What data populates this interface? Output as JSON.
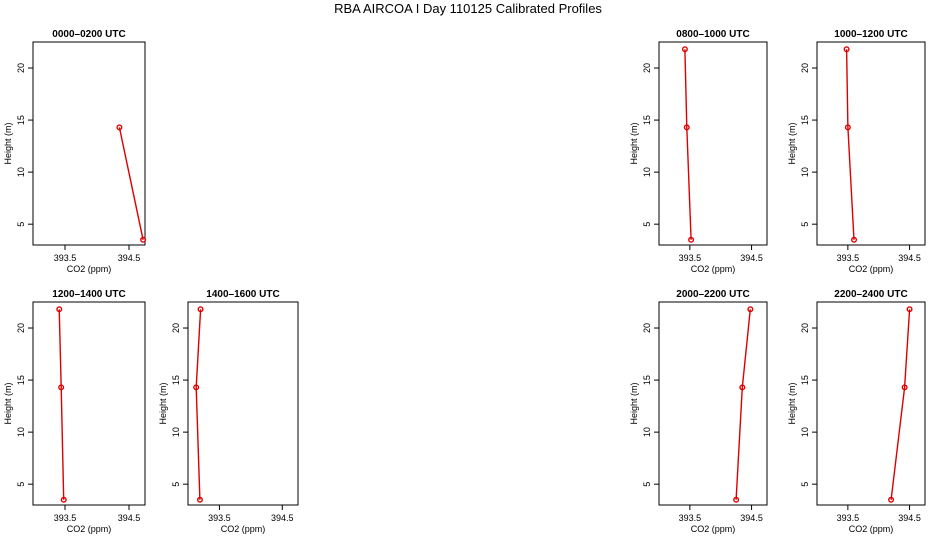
{
  "title": "RBA AIRCOA I  Day 110125  Calibrated Profiles",
  "chart_data": [
    {
      "type": "line",
      "title": "0000–0200 UTC",
      "xlabel": "CO2 (ppm)",
      "ylabel": "Height (m)",
      "xlim": [
        393.0,
        394.75
      ],
      "ylim": [
        3,
        22.5
      ],
      "xticks": [
        393.5,
        394.5
      ],
      "yticks": [
        5,
        10,
        15,
        20
      ],
      "points": [
        {
          "x": 394.35,
          "y": 14.3
        },
        {
          "x": 394.72,
          "y": 3.5
        }
      ],
      "color": "#dd0000"
    },
    {
      "type": "line",
      "title": "0800–1000 UTC",
      "xlabel": "CO2 (ppm)",
      "ylabel": "Height (m)",
      "xlim": [
        393.0,
        394.75
      ],
      "ylim": [
        3,
        22.5
      ],
      "xticks": [
        393.5,
        394.5
      ],
      "yticks": [
        5,
        10,
        15,
        20
      ],
      "points": [
        {
          "x": 393.42,
          "y": 21.8
        },
        {
          "x": 393.45,
          "y": 14.3
        },
        {
          "x": 393.52,
          "y": 3.5
        }
      ],
      "color": "#dd0000"
    },
    {
      "type": "line",
      "title": "1000–1200 UTC",
      "xlabel": "CO2 (ppm)",
      "ylabel": "Height (m)",
      "xlim": [
        393.0,
        394.75
      ],
      "ylim": [
        3,
        22.5
      ],
      "xticks": [
        393.5,
        394.5
      ],
      "yticks": [
        5,
        10,
        15,
        20
      ],
      "points": [
        {
          "x": 393.48,
          "y": 21.8
        },
        {
          "x": 393.5,
          "y": 14.3
        },
        {
          "x": 393.6,
          "y": 3.5
        }
      ],
      "color": "#dd0000"
    },
    {
      "type": "line",
      "title": "1200–1400 UTC",
      "xlabel": "CO2 (ppm)",
      "ylabel": "Height (m)",
      "xlim": [
        393.0,
        394.75
      ],
      "ylim": [
        3,
        22.5
      ],
      "xticks": [
        393.5,
        394.5
      ],
      "yticks": [
        5,
        10,
        15,
        20
      ],
      "points": [
        {
          "x": 393.41,
          "y": 21.8
        },
        {
          "x": 393.44,
          "y": 14.3
        },
        {
          "x": 393.48,
          "y": 3.5
        }
      ],
      "color": "#dd0000"
    },
    {
      "type": "line",
      "title": "1400–1600 UTC",
      "xlabel": "CO2 (ppm)",
      "ylabel": "Height (m)",
      "xlim": [
        393.0,
        394.75
      ],
      "ylim": [
        3,
        22.5
      ],
      "xticks": [
        393.5,
        394.5
      ],
      "yticks": [
        5,
        10,
        15,
        20
      ],
      "points": [
        {
          "x": 393.2,
          "y": 21.8
        },
        {
          "x": 393.13,
          "y": 14.3
        },
        {
          "x": 393.19,
          "y": 3.5
        }
      ],
      "color": "#dd0000"
    },
    {
      "type": "line",
      "title": "2000–2200 UTC",
      "xlabel": "CO2 (ppm)",
      "ylabel": "Height (m)",
      "xlim": [
        393.0,
        394.75
      ],
      "ylim": [
        3,
        22.5
      ],
      "xticks": [
        393.5,
        394.5
      ],
      "yticks": [
        5,
        10,
        15,
        20
      ],
      "points": [
        {
          "x": 394.48,
          "y": 21.8
        },
        {
          "x": 394.35,
          "y": 14.3
        },
        {
          "x": 394.25,
          "y": 3.5
        }
      ],
      "color": "#dd0000"
    },
    {
      "type": "line",
      "title": "2200–2400 UTC",
      "xlabel": "CO2 (ppm)",
      "ylabel": "Height (m)",
      "xlim": [
        393.0,
        394.75
      ],
      "ylim": [
        3,
        22.5
      ],
      "xticks": [
        393.5,
        394.5
      ],
      "yticks": [
        5,
        10,
        15,
        20
      ],
      "points": [
        {
          "x": 394.5,
          "y": 21.8
        },
        {
          "x": 394.42,
          "y": 14.3
        },
        {
          "x": 394.2,
          "y": 3.5
        }
      ],
      "color": "#dd0000"
    }
  ]
}
